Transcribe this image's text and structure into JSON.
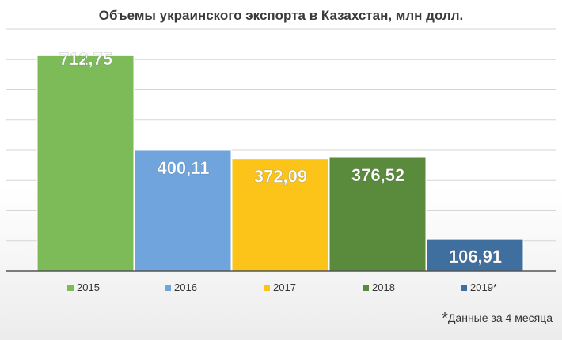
{
  "chart_data": {
    "type": "bar",
    "title": "Объемы украинского экспорта в Казахстан, млн долл.",
    "categories": [
      "2015",
      "2016",
      "2017",
      "2018",
      "2019*"
    ],
    "values": [
      712.75,
      400.11,
      372.09,
      376.52,
      106.91
    ],
    "data_labels": [
      "712,75",
      "400,11",
      "372,09",
      "376,52",
      "106,91"
    ],
    "colors": [
      "#7dbb58",
      "#6fa4dc",
      "#fcc419",
      "#5a8a3c",
      "#3f6f9f"
    ],
    "ylim": [
      0,
      800
    ],
    "grid": true,
    "legend_position": "bottom",
    "xlabel": "",
    "ylabel": ""
  },
  "footnote": {
    "marker": "*",
    "text": "Данные за 4 месяца"
  }
}
